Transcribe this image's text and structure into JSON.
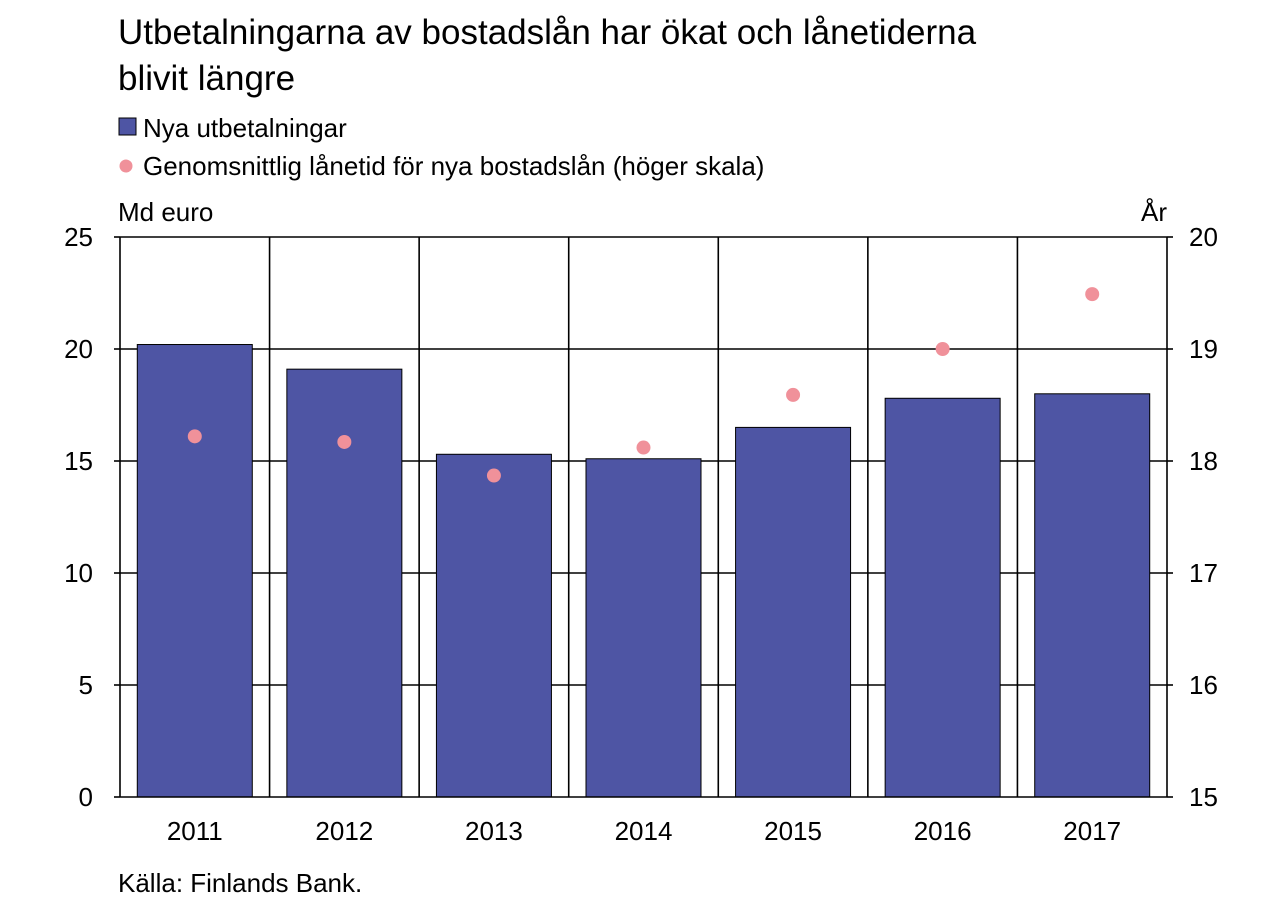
{
  "chart_data": {
    "type": "bar",
    "title_lines": [
      "Utbetalningarna av bostadslån har ökat och lånetiderna",
      "blivit längre"
    ],
    "categories": [
      "2011",
      "2012",
      "2013",
      "2014",
      "2015",
      "2016",
      "2017"
    ],
    "series": [
      {
        "name": "Nya utbetalningar",
        "type": "bar",
        "axis": "left",
        "color": "#4e55a4",
        "values": [
          20.2,
          19.1,
          15.3,
          15.1,
          16.5,
          17.8,
          18.0
        ]
      },
      {
        "name": "Genomsnittlig lånetid för nya bostadslån (höger skala)",
        "type": "scatter",
        "axis": "right",
        "color": "#f0919a",
        "values": [
          18.22,
          18.17,
          17.87,
          18.12,
          18.59,
          19.0,
          19.49
        ]
      }
    ],
    "y_left": {
      "unit_label": "Md euro",
      "range": [
        0,
        25
      ],
      "ticks": [
        "0",
        "5",
        "10",
        "15",
        "20",
        "25"
      ]
    },
    "y_right": {
      "unit_label": "År",
      "range": [
        15,
        20
      ],
      "ticks": [
        "15",
        "16",
        "17",
        "18",
        "19",
        "20"
      ]
    },
    "grid": true,
    "legend_position": "top-left",
    "source": "Källa: Finlands Bank."
  }
}
